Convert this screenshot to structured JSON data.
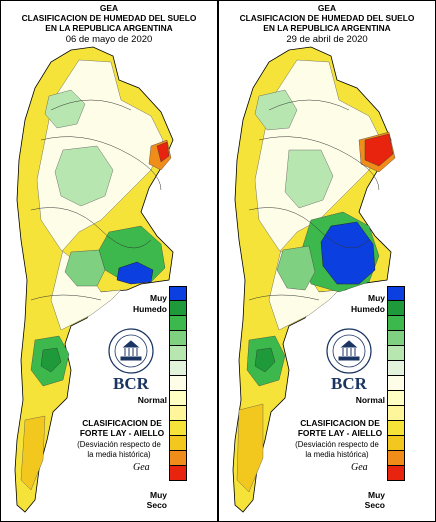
{
  "panels": [
    {
      "org": "GEA",
      "title_line1": "CLASIFICACION DE HUMEDAD DEL SUELO",
      "title_line2": "EN LA REPUBLICA ARGENTINA",
      "date": "06 de mayo de 2020",
      "brand": "BCR",
      "classification_title_1": "CLASIFICACION DE",
      "classification_title_2": "FORTE LAY - AIELLO",
      "classification_note_1": "(Desviación respecto de",
      "classification_note_2": "la media histórica)",
      "signature": "Gea"
    },
    {
      "org": "GEA",
      "title_line1": "CLASIFICACION DE HUMEDAD DEL SUELO",
      "title_line2": "EN LA REPUBLICA ARGENTINA",
      "date": "29 de abril de 2020",
      "brand": "BCR",
      "classification_title_1": "CLASIFICACION DE",
      "classification_title_2": "FORTE LAY - AIELLO",
      "classification_note_1": "(Desviación respecto de",
      "classification_note_2": "la media histórica)",
      "signature": "Gea"
    }
  ],
  "legend": {
    "wet_label_1": "Muy",
    "wet_label_2": "Humedo",
    "normal_label": "Normal",
    "dry_label_1": "Muy",
    "dry_label_2": "Seco",
    "scale_colors": [
      "#0b3fe0",
      "#1f9a3a",
      "#3cb84c",
      "#7fd080",
      "#b7e6b0",
      "#e2f3dc",
      "#fdfde8",
      "#ffffc4",
      "#fff59a",
      "#f6e33a",
      "#f2c81e",
      "#f08c1a",
      "#e8240f"
    ]
  },
  "colors": {
    "very_wet": "#0b3fe0",
    "wet": "#3cb84c",
    "normal": "#fdfde8",
    "dry": "#f6e33a",
    "very_dry": "#e8240f",
    "brand": "#1b3563"
  }
}
